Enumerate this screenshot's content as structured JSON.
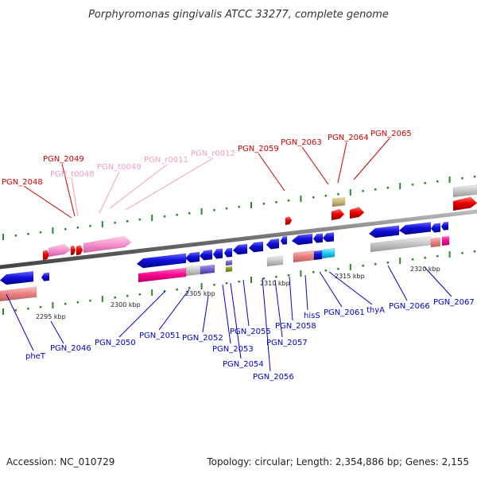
{
  "title": "Porphyromonas gingivalis ATCC 33277, complete genome",
  "accession": "Accession: NC_010729",
  "summary": "Topology: circular; Length: 2,354,886 bp; Genes: 2,155",
  "colors": {
    "forward_gene": "#ee0000",
    "reverse_gene": "#0000cc",
    "rna": "#f080c0",
    "tick": "#2a8a2a",
    "backbone": "#888888"
  },
  "scale_ticks": [
    "2295 kbp",
    "2300 kbp",
    "2305 kbp",
    "2310 kbp",
    "2315 kbp",
    "2320 kbp"
  ],
  "forward_labels": [
    "PGN_2048",
    "PGN_2049",
    "PGN_2059",
    "PGN_2063",
    "PGN_2064",
    "PGN_2065"
  ],
  "rna_labels": [
    "PGN_t0048",
    "PGN_t0049",
    "PGN_r0011",
    "PGN_r0012"
  ],
  "reverse_labels": [
    "pheT",
    "PGN_2046",
    "PGN_2050",
    "PGN_2051",
    "PGN_2052",
    "PGN_2053",
    "PGN_2054",
    "PGN_2055",
    "PGN_2056",
    "PGN_2057",
    "PGN_2058",
    "hisS",
    "PGN_2061",
    "thyA",
    "PGN_2066",
    "PGN_2067"
  ]
}
